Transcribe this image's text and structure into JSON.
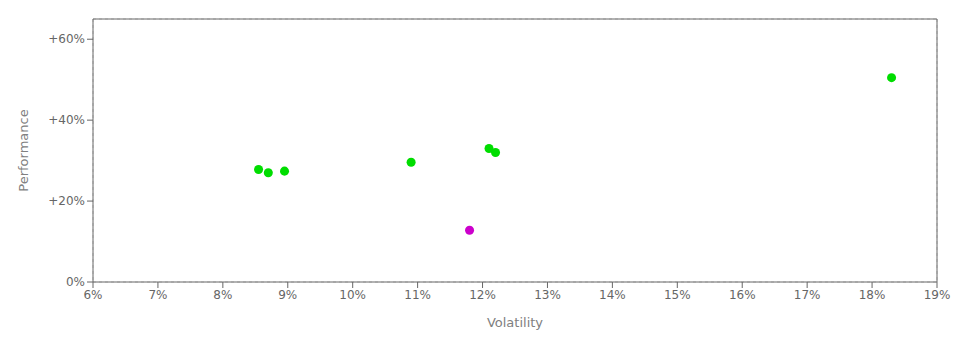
{
  "chart_data": {
    "type": "scatter",
    "xlabel": "Volatility",
    "ylabel": "Performance",
    "xlim": [
      0.06,
      0.19
    ],
    "ylim": [
      0.0,
      0.65
    ],
    "xticks": [
      {
        "value": 0.06,
        "label": "6%"
      },
      {
        "value": 0.07,
        "label": "7%"
      },
      {
        "value": 0.08,
        "label": "8%"
      },
      {
        "value": 0.09,
        "label": "9%"
      },
      {
        "value": 0.1,
        "label": "10%"
      },
      {
        "value": 0.11,
        "label": "11%"
      },
      {
        "value": 0.12,
        "label": "12%"
      },
      {
        "value": 0.13,
        "label": "13%"
      },
      {
        "value": 0.14,
        "label": "14%"
      },
      {
        "value": 0.15,
        "label": "15%"
      },
      {
        "value": 0.16,
        "label": "16%"
      },
      {
        "value": 0.17,
        "label": "17%"
      },
      {
        "value": 0.18,
        "label": "18%"
      },
      {
        "value": 0.19,
        "label": "19%"
      }
    ],
    "yticks": [
      {
        "value": 0.0,
        "label": "0%"
      },
      {
        "value": 0.2,
        "label": "+20%"
      },
      {
        "value": 0.4,
        "label": "+40%"
      },
      {
        "value": 0.6,
        "label": "+60%"
      }
    ],
    "grid": true,
    "series": [
      {
        "color": "#00dd00",
        "x": [
          0.0855,
          0.087,
          0.0895,
          0.109,
          0.121,
          0.122,
          0.183
        ],
        "values": [
          0.278,
          0.27,
          0.274,
          0.296,
          0.33,
          0.32,
          0.505
        ]
      },
      {
        "color": "#cc00cc",
        "x": [
          0.118
        ],
        "values": [
          0.128
        ]
      }
    ]
  }
}
